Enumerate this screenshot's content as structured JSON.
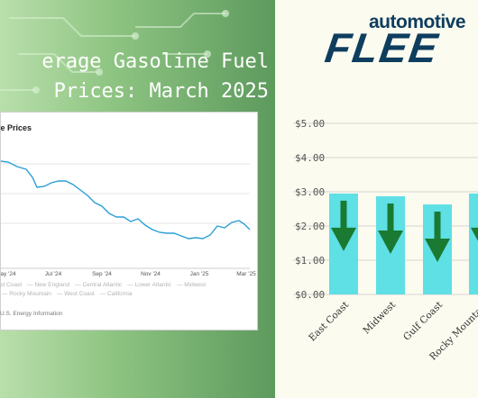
{
  "headline": {
    "line1": "erage Gasoline Fuel",
    "line2": "Prices: March 2025"
  },
  "screenshot": {
    "title": "ne Prices",
    "months": [
      "ay '24",
      "Jul '24",
      "Sep '24",
      "Nov '24",
      "Jan '25",
      "Mar '25"
    ],
    "legend_row1": [
      "st Coast",
      "New England",
      "Central Atlantic",
      "Lower Atlantic",
      "Midwest"
    ],
    "legend_row2": [
      "Rocky Mountain",
      "West Coast",
      "California"
    ],
    "source": "U.S. Energy Information",
    "line_color": "#2a9fd6"
  },
  "logo": {
    "top": "automotive",
    "bottom": "FLEE",
    "color": "#0e3d5e"
  },
  "chart_data": {
    "type": "bar",
    "categories": [
      "East Coast",
      "Midwest",
      "Gulf Coast",
      "Rocky Mountain"
    ],
    "values": [
      2.95,
      2.87,
      2.63,
      2.95
    ],
    "yticks": [
      "$0.00",
      "$1.00",
      "$2.00",
      "$3.00",
      "$4.00",
      "$5.00"
    ],
    "ylim": [
      0,
      5
    ],
    "bar_color": "#5ee0e5",
    "arrow_color": "#1a7a32",
    "grid": true
  }
}
